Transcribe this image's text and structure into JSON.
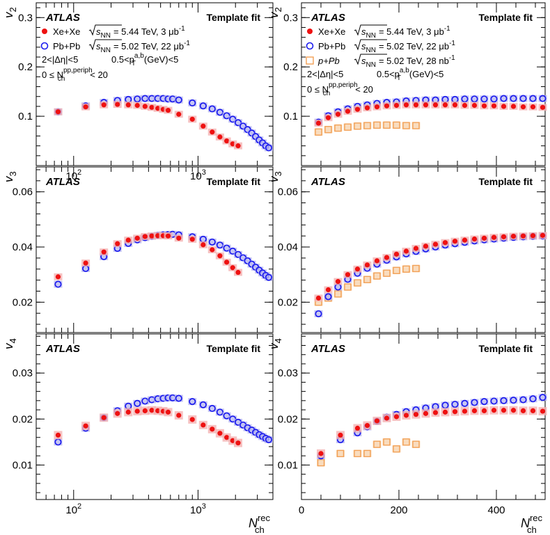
{
  "chart_data": [
    {
      "id": "v2_log",
      "type": "scatter",
      "xscale": "log",
      "xlim": [
        50,
        4000
      ],
      "ylim": [
        0,
        0.33
      ],
      "ylabel": "v",
      "ylabel_sub": "2",
      "yticks": [
        "0.1",
        "0.2",
        "0.3"
      ],
      "xticks": [
        {
          "base": "10",
          "exp": "2"
        },
        {
          "base": "10",
          "exp": "3"
        }
      ],
      "atlas": "ATLAS",
      "method": "Template fit",
      "legend": [
        {
          "name": "Xe+Xe",
          "energy": "= 5.44 TeV, 3 μb",
          "lumi_sup": "-1"
        },
        {
          "name": "Pb+Pb",
          "energy": "= 5.02 TeV, 22 μb",
          "lumi_sup": "-1"
        }
      ],
      "sel_eta": "2<|Δη|<5",
      "sel_pt": "0.5<p",
      "sel_pt_unit": "(GeV)<5",
      "sel_nch": "0 ≤ N",
      "sel_nch_val": "< 20",
      "series": [
        {
          "name": "Xe+Xe",
          "x": [
            75,
            125,
            175,
            225,
            275,
            325,
            375,
            425,
            475,
            525,
            575,
            700,
            900,
            1100,
            1300,
            1500,
            1700,
            1900,
            2100
          ],
          "y": [
            0.109,
            0.119,
            0.123,
            0.124,
            0.123,
            0.122,
            0.12,
            0.118,
            0.116,
            0.114,
            0.112,
            0.104,
            0.094,
            0.08,
            0.068,
            0.058,
            0.05,
            0.044,
            0.04
          ]
        },
        {
          "name": "Pb+Pb",
          "x": [
            75,
            125,
            175,
            225,
            275,
            325,
            375,
            425,
            475,
            525,
            575,
            625,
            700,
            900,
            1100,
            1300,
            1500,
            1700,
            1900,
            2100,
            2300,
            2500,
            2700,
            2900,
            3100,
            3300,
            3500,
            3700
          ],
          "y": [
            0.109,
            0.121,
            0.128,
            0.132,
            0.134,
            0.135,
            0.136,
            0.136,
            0.136,
            0.136,
            0.135,
            0.135,
            0.133,
            0.127,
            0.121,
            0.115,
            0.108,
            0.101,
            0.094,
            0.087,
            0.08,
            0.073,
            0.066,
            0.059,
            0.052,
            0.046,
            0.04,
            0.036
          ]
        }
      ]
    },
    {
      "id": "v2_lin",
      "type": "scatter",
      "xscale": "linear",
      "xlim": [
        0,
        500
      ],
      "ylim": [
        0,
        0.33
      ],
      "ylabel": "v",
      "ylabel_sub": "2",
      "yticks": [
        "0.1",
        "0.2",
        "0.3"
      ],
      "atlas": "ATLAS",
      "method": "Template fit",
      "legend": [
        {
          "name": "Xe+Xe",
          "energy": "= 5.44 TeV, 3 μb",
          "lumi_sup": "-1"
        },
        {
          "name": "Pb+Pb",
          "energy": "= 5.02 TeV, 22 μb",
          "lumi_sup": "-1"
        },
        {
          "name": "p+Pb",
          "energy": "= 5.02 TeV, 28 nb",
          "lumi_sup": "-1"
        }
      ],
      "sel_eta": "2<|Δη|<5",
      "sel_pt": "0.5<p",
      "sel_pt_unit": "(GeV)<5",
      "sel_nch": "0 ≤ N",
      "sel_nch_val": "< 20",
      "series": [
        {
          "name": "Xe+Xe",
          "x": [
            35,
            55,
            75,
            95,
            115,
            135,
            155,
            175,
            195,
            215,
            235,
            255,
            275,
            295,
            315,
            335,
            355,
            375,
            395,
            415,
            435,
            455,
            475,
            495
          ],
          "y": [
            0.086,
            0.097,
            0.104,
            0.11,
            0.114,
            0.117,
            0.119,
            0.121,
            0.122,
            0.123,
            0.123,
            0.123,
            0.123,
            0.123,
            0.123,
            0.122,
            0.122,
            0.121,
            0.121,
            0.12,
            0.12,
            0.119,
            0.119,
            0.118
          ]
        },
        {
          "name": "Pb+Pb",
          "x": [
            35,
            55,
            75,
            95,
            115,
            135,
            155,
            175,
            195,
            215,
            235,
            255,
            275,
            295,
            315,
            335,
            355,
            375,
            395,
            415,
            435,
            455,
            475,
            495
          ],
          "y": [
            0.088,
            0.101,
            0.109,
            0.115,
            0.12,
            0.123,
            0.126,
            0.128,
            0.129,
            0.131,
            0.132,
            0.133,
            0.133,
            0.134,
            0.134,
            0.135,
            0.135,
            0.135,
            0.135,
            0.136,
            0.136,
            0.136,
            0.136,
            0.136
          ]
        },
        {
          "name": "p+Pb",
          "x": [
            35,
            55,
            75,
            95,
            115,
            135,
            155,
            175,
            195,
            215,
            235
          ],
          "y": [
            0.068,
            0.073,
            0.076,
            0.078,
            0.08,
            0.081,
            0.082,
            0.082,
            0.082,
            0.081,
            0.081
          ]
        }
      ]
    },
    {
      "id": "v3_log",
      "type": "scatter",
      "xscale": "log",
      "xlim": [
        50,
        4000
      ],
      "ylim": [
        0.009,
        0.069
      ],
      "ylabel": "v",
      "ylabel_sub": "3",
      "yticks": [
        "0.02",
        "0.04",
        "0.06"
      ],
      "atlas": "ATLAS",
      "method": "Template fit",
      "series": [
        {
          "name": "Xe+Xe",
          "x": [
            75,
            125,
            175,
            225,
            275,
            325,
            375,
            425,
            475,
            525,
            575,
            700,
            900,
            1100,
            1300,
            1500,
            1700,
            1900,
            2100
          ],
          "y": [
            0.0292,
            0.0342,
            0.0382,
            0.0412,
            0.0425,
            0.0432,
            0.0438,
            0.044,
            0.0441,
            0.0441,
            0.044,
            0.0432,
            0.0428,
            0.0408,
            0.039,
            0.0368,
            0.0345,
            0.0325,
            0.0308
          ]
        },
        {
          "name": "Pb+Pb",
          "x": [
            75,
            125,
            175,
            225,
            275,
            325,
            375,
            425,
            475,
            525,
            575,
            625,
            700,
            900,
            1100,
            1300,
            1500,
            1700,
            1900,
            2100,
            2300,
            2500,
            2700,
            2900,
            3100,
            3300,
            3500,
            3700
          ],
          "y": [
            0.0265,
            0.0322,
            0.0365,
            0.0395,
            0.0413,
            0.0426,
            0.0434,
            0.0439,
            0.0442,
            0.0444,
            0.0445,
            0.0446,
            0.0444,
            0.0437,
            0.0428,
            0.0418,
            0.0407,
            0.0396,
            0.0385,
            0.0373,
            0.0361,
            0.035,
            0.0338,
            0.0327,
            0.0316,
            0.0306,
            0.0297,
            0.029
          ]
        }
      ]
    },
    {
      "id": "v3_lin",
      "type": "scatter",
      "xscale": "linear",
      "xlim": [
        0,
        500
      ],
      "ylim": [
        0.009,
        0.069
      ],
      "ylabel": "v",
      "ylabel_sub": "3",
      "yticks": [
        "0.02",
        "0.04",
        "0.06"
      ],
      "atlas": "ATLAS",
      "method": "Template fit",
      "series": [
        {
          "name": "Xe+Xe",
          "x": [
            35,
            55,
            75,
            95,
            115,
            135,
            155,
            175,
            195,
            215,
            235,
            255,
            275,
            295,
            315,
            335,
            355,
            375,
            395,
            415,
            435,
            455,
            475,
            495
          ],
          "y": [
            0.0215,
            0.0245,
            0.0275,
            0.03,
            0.032,
            0.0335,
            0.035,
            0.0362,
            0.0374,
            0.0385,
            0.0395,
            0.0403,
            0.041,
            0.0416,
            0.0421,
            0.0425,
            0.0429,
            0.0432,
            0.0435,
            0.0437,
            0.0439,
            0.044,
            0.0441,
            0.0442
          ]
        },
        {
          "name": "Pb+Pb",
          "x": [
            35,
            55,
            75,
            95,
            115,
            135,
            155,
            175,
            195,
            215,
            235,
            255,
            275,
            295,
            315,
            335,
            355,
            375,
            395,
            415,
            435,
            455,
            475,
            495
          ],
          "y": [
            0.0158,
            0.022,
            0.0255,
            0.0283,
            0.0305,
            0.0323,
            0.0338,
            0.0352,
            0.0364,
            0.0375,
            0.0384,
            0.0393,
            0.04,
            0.0407,
            0.0412,
            0.0417,
            0.0422,
            0.0426,
            0.0429,
            0.0432,
            0.0435,
            0.0437,
            0.0439,
            0.044
          ]
        },
        {
          "name": "p+Pb",
          "x": [
            35,
            55,
            75,
            95,
            115,
            135,
            155,
            175,
            195,
            215,
            235
          ],
          "y": [
            0.02,
            0.0215,
            0.023,
            0.0255,
            0.027,
            0.0282,
            0.0295,
            0.0305,
            0.0315,
            0.032,
            0.0322
          ]
        }
      ]
    },
    {
      "id": "v4_log",
      "type": "scatter",
      "xscale": "log",
      "xlim": [
        50,
        4000
      ],
      "ylim": [
        0.0025,
        0.0385
      ],
      "ylabel": "v",
      "ylabel_sub": "4",
      "yticks": [
        "0.01",
        "0.02",
        "0.03"
      ],
      "atlas": "ATLAS",
      "method": "Template fit",
      "xlabel": "N",
      "xlabel_sub": "ch",
      "xlabel_sup": "rec",
      "xticks": [
        {
          "base": "10",
          "exp": "2"
        },
        {
          "base": "10",
          "exp": "3"
        }
      ],
      "series": [
        {
          "name": "Xe+Xe",
          "x": [
            75,
            125,
            175,
            225,
            275,
            325,
            375,
            425,
            475,
            525,
            575,
            700,
            900,
            1100,
            1300,
            1500,
            1700,
            1900,
            2100
          ],
          "y": [
            0.0165,
            0.0185,
            0.0203,
            0.0212,
            0.0215,
            0.0217,
            0.0218,
            0.0219,
            0.0218,
            0.0217,
            0.0215,
            0.0208,
            0.0199,
            0.0187,
            0.0178,
            0.0169,
            0.016,
            0.0153,
            0.0148
          ]
        },
        {
          "name": "Pb+Pb",
          "x": [
            75,
            125,
            175,
            225,
            275,
            325,
            375,
            425,
            475,
            525,
            575,
            625,
            700,
            900,
            1100,
            1300,
            1500,
            1700,
            1900,
            2100,
            2300,
            2500,
            2700,
            2900,
            3100,
            3300,
            3500,
            3700
          ],
          "y": [
            0.015,
            0.018,
            0.0203,
            0.0218,
            0.0228,
            0.0234,
            0.0239,
            0.0242,
            0.0244,
            0.0245,
            0.0246,
            0.0246,
            0.0245,
            0.0238,
            0.0231,
            0.0223,
            0.0215,
            0.0207,
            0.02,
            0.0193,
            0.0187,
            0.0181,
            0.0176,
            0.0171,
            0.0166,
            0.0162,
            0.0158,
            0.0155
          ]
        }
      ]
    },
    {
      "id": "v4_lin",
      "type": "scatter",
      "xscale": "linear",
      "xlim": [
        0,
        500
      ],
      "ylim": [
        0.0025,
        0.0385
      ],
      "ylabel": "v",
      "ylabel_sub": "4",
      "yticks": [
        "0.01",
        "0.02",
        "0.03"
      ],
      "atlas": "ATLAS",
      "method": "Template fit",
      "xlabel": "N",
      "xlabel_sub": "ch",
      "xlabel_sup": "rec",
      "xticks": [
        "0",
        "200",
        "400"
      ],
      "series": [
        {
          "name": "Xe+Xe",
          "x": [
            40,
            80,
            115,
            135,
            155,
            175,
            195,
            215,
            235,
            255,
            275,
            295,
            315,
            335,
            355,
            375,
            395,
            415,
            435,
            455,
            475,
            495
          ],
          "y": [
            0.0125,
            0.0165,
            0.018,
            0.0186,
            0.0196,
            0.0202,
            0.0205,
            0.0208,
            0.021,
            0.0212,
            0.0214,
            0.0215,
            0.0216,
            0.0217,
            0.0218,
            0.0218,
            0.0219,
            0.0219,
            0.0219,
            0.0218,
            0.0218,
            0.0217
          ]
        },
        {
          "name": "Pb+Pb",
          "x": [
            40,
            80,
            115,
            135,
            155,
            175,
            195,
            215,
            235,
            255,
            275,
            295,
            315,
            335,
            355,
            375,
            395,
            415,
            435,
            455,
            475,
            495
          ],
          "y": [
            0.012,
            0.0155,
            0.017,
            0.0183,
            0.0195,
            0.0204,
            0.021,
            0.0216,
            0.022,
            0.0224,
            0.0227,
            0.023,
            0.0232,
            0.0234,
            0.0236,
            0.0238,
            0.0239,
            0.024,
            0.0241,
            0.0242,
            0.0244,
            0.0247
          ]
        },
        {
          "name": "p+Pb",
          "x": [
            40,
            80,
            115,
            135,
            155,
            175,
            195,
            215,
            235
          ],
          "y": [
            0.0105,
            0.0125,
            0.0125,
            0.0125,
            0.0145,
            0.015,
            0.0135,
            0.015,
            0.0145
          ]
        }
      ]
    }
  ],
  "colors": {
    "Xe+Xe": "#ee1111",
    "Pb+Pb": "#1a1aee",
    "p+Pb": "#f2a055",
    "xe_band": "#f4b3b3",
    "pb_band": "#b8b8f0",
    "ppb_band": "#f8d3ae"
  },
  "energy_prefix": "s",
  "energy_sub": "NN",
  "ylabel_pt_sup": "a,b",
  "ylabel_pt_sub": "T",
  "nch_sup": "pp,periph",
  "nch_sub": "ch"
}
